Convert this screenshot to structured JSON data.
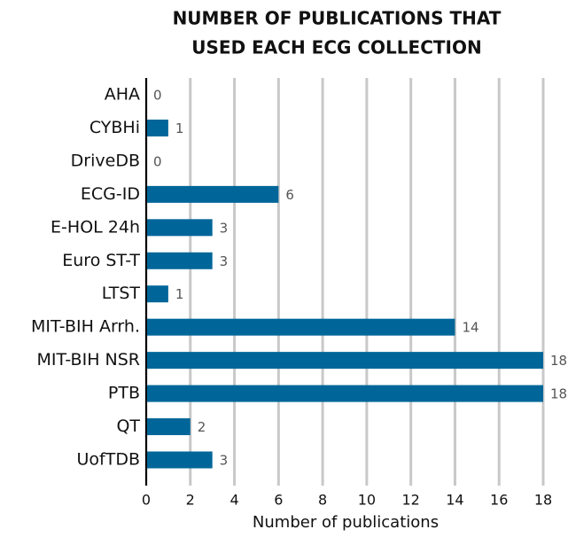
{
  "chart_data": {
    "type": "bar",
    "orientation": "horizontal",
    "title": [
      "NUMBER OF PUBLICATIONS THAT",
      "USED EACH ECG COLLECTION"
    ],
    "x_label": "Number of publications",
    "categories": [
      "AHA",
      "CYBHi",
      "DriveDB",
      "ECG-ID",
      "E-HOL 24h",
      "Euro ST-T",
      "LTST",
      "MIT-BIH Arrh.",
      "MIT-BIH NSR",
      "PTB",
      "QT",
      "UofTDB"
    ],
    "values": [
      0,
      1,
      0,
      6,
      3,
      3,
      1,
      14,
      18,
      18,
      2,
      3
    ],
    "color": "#006699",
    "xlim": [
      0,
      18
    ],
    "xticks": [
      0,
      2,
      4,
      6,
      8,
      10,
      12,
      14,
      16,
      18
    ],
    "grid": true
  }
}
